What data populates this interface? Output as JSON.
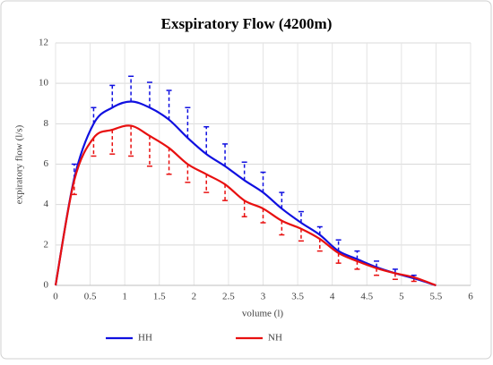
{
  "chart_data": {
    "type": "line",
    "title": "Exspiratory Flow (4200m)",
    "x_label": "volume (l)",
    "y_label": "expiratory flow (l/s)",
    "x": [
      0,
      0.27,
      0.55,
      0.82,
      1.09,
      1.36,
      1.64,
      1.91,
      2.18,
      2.45,
      2.73,
      3.0,
      3.27,
      3.55,
      3.82,
      4.09,
      4.36,
      4.64,
      4.91,
      5.18,
      5.5
    ],
    "series": [
      {
        "name": "HH",
        "color": "#1010e0",
        "error_bars": "up",
        "values": [
          0,
          5.3,
          8.0,
          8.8,
          9.1,
          8.8,
          8.2,
          7.3,
          6.5,
          5.9,
          5.2,
          4.6,
          3.8,
          3.1,
          2.5,
          1.7,
          1.3,
          0.9,
          0.6,
          0.35,
          0
        ],
        "errors": [
          null,
          0.7,
          0.8,
          1.1,
          1.25,
          1.25,
          1.45,
          1.5,
          1.35,
          1.1,
          0.9,
          1.0,
          0.8,
          0.55,
          0.4,
          0.55,
          0.4,
          0.3,
          0.2,
          0.15,
          null
        ]
      },
      {
        "name": "NH",
        "color": "#e81010",
        "error_bars": "down",
        "values": [
          0,
          5.2,
          7.3,
          7.7,
          7.9,
          7.4,
          6.8,
          6.0,
          5.5,
          5.0,
          4.2,
          3.8,
          3.2,
          2.8,
          2.3,
          1.6,
          1.2,
          0.85,
          0.6,
          0.4,
          0
        ],
        "errors": [
          null,
          0.7,
          0.9,
          1.2,
          1.5,
          1.5,
          1.3,
          0.9,
          0.9,
          0.8,
          0.8,
          0.7,
          0.7,
          0.6,
          0.6,
          0.5,
          0.4,
          0.35,
          0.3,
          0.2,
          null
        ]
      }
    ],
    "xlim": [
      0,
      6
    ],
    "xticks": [
      0,
      0.5,
      1,
      1.5,
      2,
      2.5,
      3,
      3.5,
      4,
      4.5,
      5,
      5.5,
      6
    ],
    "ylim": [
      0,
      12
    ],
    "yticks": [
      0,
      2,
      4,
      6,
      8,
      10,
      12
    ],
    "grid": true,
    "legend": "bottom"
  }
}
